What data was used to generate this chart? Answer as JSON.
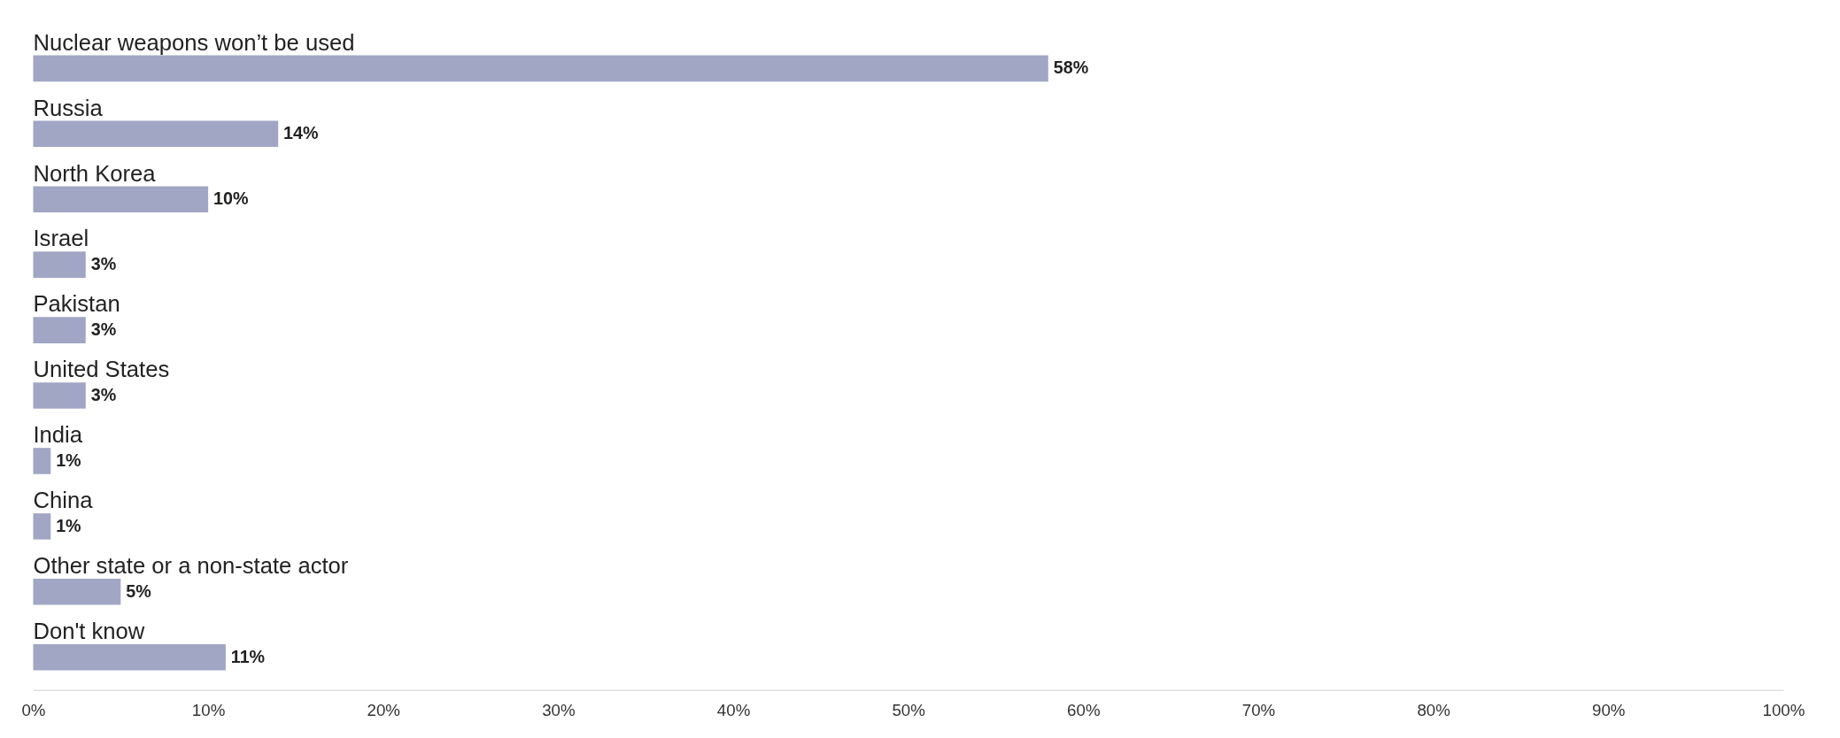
{
  "chart_data": {
    "type": "bar",
    "orientation": "horizontal",
    "categories": [
      "Nuclear weapons won’t be used",
      "Russia",
      "North Korea",
      "Israel",
      "Pakistan",
      "United States",
      "India",
      "China",
      "Other state or a non-state actor",
      "Don't know"
    ],
    "values": [
      58,
      14,
      10,
      3,
      3,
      3,
      1,
      1,
      5,
      11
    ],
    "value_labels": [
      "58%",
      "14%",
      "10%",
      "3%",
      "3%",
      "3%",
      "1%",
      "1%",
      "5%",
      "11%"
    ],
    "color": "#a0a6c4",
    "xlim": [
      0,
      100
    ],
    "xticks": [
      {
        "value": 0,
        "label": "0%"
      },
      {
        "value": 10,
        "label": "10%"
      },
      {
        "value": 20,
        "label": "20%"
      },
      {
        "value": 30,
        "label": "30%"
      },
      {
        "value": 40,
        "label": "40%"
      },
      {
        "value": 50,
        "label": "50%"
      },
      {
        "value": 60,
        "label": "60%"
      },
      {
        "value": 70,
        "label": "70%"
      },
      {
        "value": 80,
        "label": "80%"
      },
      {
        "value": 90,
        "label": "90%"
      },
      {
        "value": 100,
        "label": "100%"
      }
    ],
    "grid": false,
    "tick_labels": "x"
  }
}
